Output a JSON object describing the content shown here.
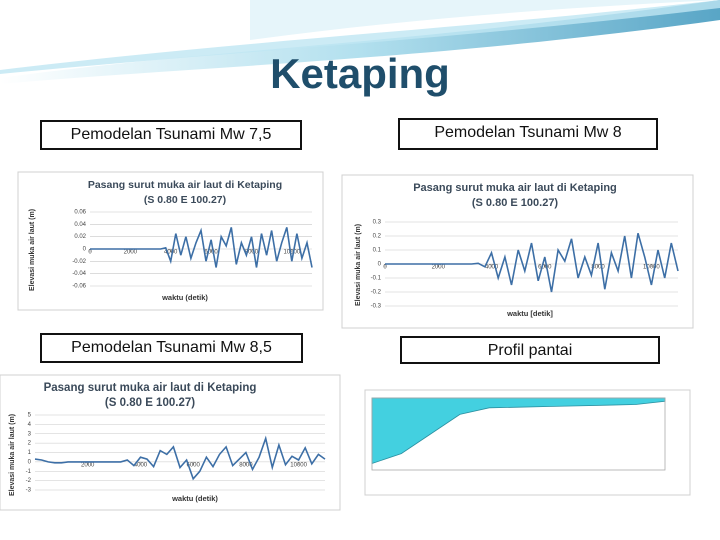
{
  "slide": {
    "title": "Ketaping",
    "captions": [
      "Pemodelan Tsunami Mw 7,5",
      "Pemodelan Tsunami Mw 8",
      "Pemodelan Tsunami Mw 8,5",
      "Profil pantai"
    ]
  },
  "chart_data": [
    {
      "type": "line",
      "title": "Pasang surut muka air laut di Ketaping",
      "subtitle": "(S 0.80 E 100.27)",
      "x_label": "waktu (detik)",
      "y_label": "Elevasi muka air laut (m)",
      "color": "#3d6fa6",
      "grid": true,
      "xlim": [
        0,
        11000
      ],
      "ylim": [
        -0.06,
        0.06
      ],
      "xticks": [
        0,
        2000,
        4000,
        6000,
        8000,
        10000
      ],
      "yticks": [
        0.06,
        0.04,
        0.02,
        0,
        -0.02,
        -0.04,
        -0.06
      ],
      "x": [
        0,
        250,
        500,
        750,
        1000,
        1250,
        1500,
        1750,
        2000,
        2250,
        2500,
        2750,
        3000,
        3250,
        3500,
        3750,
        4000,
        4250,
        4500,
        4750,
        5000,
        5250,
        5500,
        5750,
        6000,
        6250,
        6500,
        6750,
        7000,
        7250,
        7500,
        7750,
        8000,
        8250,
        8500,
        8750,
        9000,
        9250,
        9500,
        9750,
        10000,
        10250,
        10500,
        10750,
        11000
      ],
      "values": [
        0,
        0,
        0,
        0,
        0,
        0,
        0,
        0,
        0,
        0,
        0,
        0,
        0,
        0,
        0,
        0.002,
        -0.02,
        0.025,
        -0.01,
        0.02,
        -0.015,
        0.01,
        0.03,
        -0.02,
        0.015,
        -0.03,
        0.02,
        0.005,
        0.035,
        -0.025,
        0.01,
        -0.01,
        0.02,
        -0.03,
        0.025,
        -0.01,
        0.03,
        -0.02,
        0.01,
        0.035,
        -0.02,
        0.025,
        -0.015,
        0.01,
        -0.03
      ]
    },
    {
      "type": "line",
      "title": "Pasang surut muka air laut di Ketaping",
      "subtitle": "(S 0.80 E 100.27)",
      "x_label": "waktu [detik]",
      "y_label": "Elevasi muka air laut (m)",
      "color": "#3d6fa6",
      "grid": true,
      "xlim": [
        0,
        11000
      ],
      "ylim": [
        -0.3,
        0.3
      ],
      "xticks": [
        0,
        2000,
        4000,
        6000,
        8000,
        10000
      ],
      "yticks": [
        0.3,
        0.2,
        0.1,
        0,
        -0.1,
        -0.2,
        -0.3
      ],
      "x": [
        0,
        250,
        500,
        750,
        1000,
        1250,
        1500,
        1750,
        2000,
        2250,
        2500,
        2750,
        3000,
        3250,
        3500,
        3750,
        4000,
        4250,
        4500,
        4750,
        5000,
        5250,
        5500,
        5750,
        6000,
        6250,
        6500,
        6750,
        7000,
        7250,
        7500,
        7750,
        8000,
        8250,
        8500,
        8750,
        9000,
        9250,
        9500,
        9750,
        10000,
        10250,
        10500,
        10750,
        11000
      ],
      "values": [
        0,
        0,
        0,
        0,
        0,
        0,
        0,
        0,
        0,
        0,
        0,
        0,
        0,
        0,
        0.005,
        -0.02,
        0.08,
        -0.1,
        0.05,
        -0.15,
        0.1,
        -0.05,
        0.15,
        -0.12,
        0.05,
        -0.2,
        0.1,
        0.02,
        0.18,
        -0.1,
        0.05,
        -0.08,
        0.15,
        -0.18,
        0.08,
        -0.05,
        0.2,
        -0.1,
        0.22,
        0.05,
        -0.15,
        0.1,
        -0.1,
        0.15,
        -0.05
      ]
    },
    {
      "type": "line",
      "title": "Pasang surut muka air laut di Ketaping",
      "subtitle": "(S 0.80 E 100.27)",
      "x_label": "waktu (detik)",
      "y_label": "Elevasi muka air laut (m)",
      "color": "#3d6fa6",
      "grid": true,
      "xlim": [
        0,
        11000
      ],
      "ylim": [
        -3,
        5
      ],
      "xticks": [
        2000,
        4000,
        6000,
        8000,
        10000
      ],
      "yticks": [
        5,
        4,
        3,
        2,
        1,
        0,
        -1,
        -2,
        -3
      ],
      "x": [
        0,
        250,
        500,
        750,
        1000,
        1250,
        1500,
        1750,
        2000,
        2250,
        2500,
        2750,
        3000,
        3250,
        3500,
        3750,
        4000,
        4250,
        4500,
        4750,
        5000,
        5250,
        5500,
        5750,
        6000,
        6250,
        6500,
        6750,
        7000,
        7250,
        7500,
        7750,
        8000,
        8250,
        8500,
        8750,
        9000,
        9250,
        9500,
        9750,
        10000,
        10250,
        10500,
        10750,
        11000
      ],
      "values": [
        0.3,
        0.2,
        0,
        -0.1,
        -0.1,
        0,
        0,
        0,
        0,
        0,
        0,
        0,
        0,
        0,
        0.2,
        -0.4,
        0.5,
        0.3,
        -0.5,
        1.2,
        0.8,
        1.6,
        -0.6,
        0.2,
        -1.8,
        -1.0,
        0.5,
        -0.5,
        0.8,
        1.6,
        -0.4,
        0.3,
        1.0,
        -0.8,
        0.5,
        2.5,
        -0.6,
        1.8,
        -0.3,
        0.6,
        0.2,
        1.5,
        -0.2,
        0.8,
        0.3
      ]
    },
    {
      "type": "area",
      "color": "#43d0e0",
      "xlim": [
        0,
        10
      ],
      "ylim": [
        -1,
        0.1
      ],
      "x": [
        0,
        1,
        2,
        3,
        4,
        5,
        6,
        7,
        8,
        9,
        10
      ],
      "values": [
        -0.9,
        -0.75,
        -0.45,
        -0.15,
        -0.05,
        -0.04,
        -0.03,
        -0.02,
        -0.01,
        0.0,
        0.05
      ]
    }
  ]
}
